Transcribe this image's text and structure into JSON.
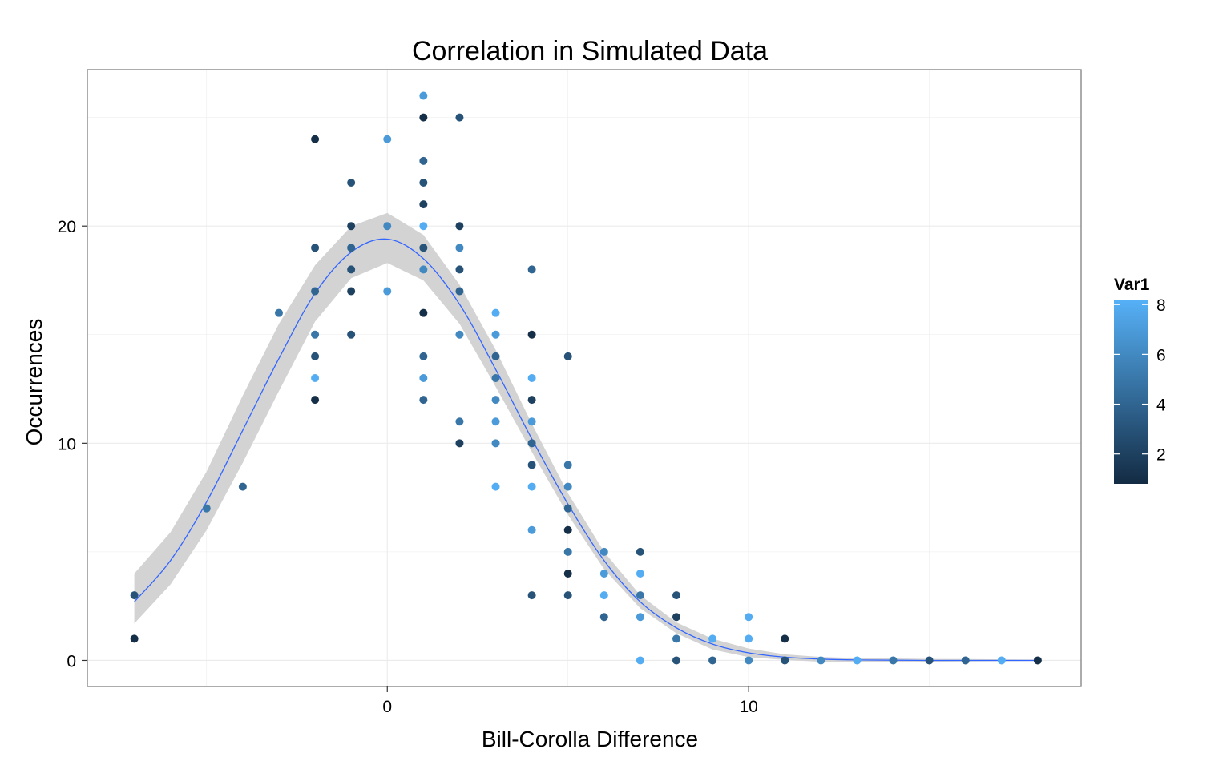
{
  "chart_data": {
    "type": "scatter",
    "title": "Correlation in Simulated Data",
    "xlabel": "Bill-Corolla Difference",
    "ylabel": "Occurrences",
    "xlim": [
      -8.3,
      19.2
    ],
    "ylim": [
      -1.2,
      27.2
    ],
    "x_ticks": [
      0,
      10
    ],
    "y_ticks": [
      0,
      10,
      20
    ],
    "x_tick_labels": [
      "0",
      "10"
    ],
    "y_tick_labels": [
      "0",
      "10",
      "20"
    ],
    "grid": true,
    "legend": {
      "title": "Var1",
      "placement": "right",
      "range": [
        0.8,
        8.2
      ],
      "ticks": [
        2,
        4,
        6,
        8
      ],
      "tick_labels": [
        "2",
        "4",
        "6",
        "8"
      ],
      "color_low": "#132b43",
      "color_high": "#56b1f7"
    },
    "colors": {
      "panel_border": "#7f7f7f",
      "grid": "#ebebeb",
      "smooth_line": "#3366ff",
      "ribbon": "#d3d3d3"
    },
    "points": [
      {
        "x": -7,
        "y": 3,
        "v": 3
      },
      {
        "x": -7,
        "y": 1,
        "v": 1
      },
      {
        "x": -5,
        "y": 7,
        "v": 5
      },
      {
        "x": -4,
        "y": 8,
        "v": 4
      },
      {
        "x": -3,
        "y": 16,
        "v": 5
      },
      {
        "x": -2,
        "y": 24,
        "v": 1
      },
      {
        "x": -2,
        "y": 19,
        "v": 3
      },
      {
        "x": -2,
        "y": 17,
        "v": 4
      },
      {
        "x": -2,
        "y": 15,
        "v": 5
      },
      {
        "x": -2,
        "y": 14,
        "v": 3
      },
      {
        "x": -2,
        "y": 13,
        "v": 8
      },
      {
        "x": -2,
        "y": 12,
        "v": 1
      },
      {
        "x": -1,
        "y": 22,
        "v": 3
      },
      {
        "x": -1,
        "y": 20,
        "v": 2
      },
      {
        "x": -1,
        "y": 19,
        "v": 4
      },
      {
        "x": -1,
        "y": 18,
        "v": 3
      },
      {
        "x": -1,
        "y": 17,
        "v": 2
      },
      {
        "x": -1,
        "y": 15,
        "v": 3
      },
      {
        "x": 0,
        "y": 24,
        "v": 7
      },
      {
        "x": 0,
        "y": 20,
        "v": 6
      },
      {
        "x": 0,
        "y": 17,
        "v": 7
      },
      {
        "x": 1,
        "y": 26,
        "v": 7
      },
      {
        "x": 1,
        "y": 25,
        "v": 1
      },
      {
        "x": 1,
        "y": 23,
        "v": 4
      },
      {
        "x": 1,
        "y": 22,
        "v": 3
      },
      {
        "x": 1,
        "y": 21,
        "v": 2
      },
      {
        "x": 1,
        "y": 20,
        "v": 8
      },
      {
        "x": 1,
        "y": 19,
        "v": 3
      },
      {
        "x": 1,
        "y": 18,
        "v": 6
      },
      {
        "x": 1,
        "y": 16,
        "v": 1
      },
      {
        "x": 1,
        "y": 14,
        "v": 4
      },
      {
        "x": 1,
        "y": 13,
        "v": 7
      },
      {
        "x": 1,
        "y": 12,
        "v": 4
      },
      {
        "x": 2,
        "y": 25,
        "v": 3
      },
      {
        "x": 2,
        "y": 20,
        "v": 2
      },
      {
        "x": 2,
        "y": 19,
        "v": 6
      },
      {
        "x": 2,
        "y": 18,
        "v": 3
      },
      {
        "x": 2,
        "y": 17,
        "v": 4
      },
      {
        "x": 2,
        "y": 15,
        "v": 6
      },
      {
        "x": 2,
        "y": 11,
        "v": 5
      },
      {
        "x": 2,
        "y": 10,
        "v": 2
      },
      {
        "x": 3,
        "y": 16,
        "v": 8
      },
      {
        "x": 3,
        "y": 15,
        "v": 7
      },
      {
        "x": 3,
        "y": 14,
        "v": 4
      },
      {
        "x": 3,
        "y": 13,
        "v": 5
      },
      {
        "x": 3,
        "y": 12,
        "v": 6
      },
      {
        "x": 3,
        "y": 11,
        "v": 7
      },
      {
        "x": 3,
        "y": 10,
        "v": 6
      },
      {
        "x": 3,
        "y": 8,
        "v": 8
      },
      {
        "x": 4,
        "y": 18,
        "v": 4
      },
      {
        "x": 4,
        "y": 15,
        "v": 1
      },
      {
        "x": 4,
        "y": 13,
        "v": 8
      },
      {
        "x": 4,
        "y": 12,
        "v": 2
      },
      {
        "x": 4,
        "y": 11,
        "v": 7
      },
      {
        "x": 4,
        "y": 10,
        "v": 4
      },
      {
        "x": 4,
        "y": 9,
        "v": 3
      },
      {
        "x": 4,
        "y": 8,
        "v": 8
      },
      {
        "x": 4,
        "y": 6,
        "v": 7
      },
      {
        "x": 4,
        "y": 3,
        "v": 3
      },
      {
        "x": 5,
        "y": 14,
        "v": 3
      },
      {
        "x": 5,
        "y": 9,
        "v": 5
      },
      {
        "x": 5,
        "y": 8,
        "v": 6
      },
      {
        "x": 5,
        "y": 7,
        "v": 4
      },
      {
        "x": 5,
        "y": 6,
        "v": 1
      },
      {
        "x": 5,
        "y": 5,
        "v": 5
      },
      {
        "x": 5,
        "y": 4,
        "v": 1
      },
      {
        "x": 5,
        "y": 3,
        "v": 3
      },
      {
        "x": 6,
        "y": 5,
        "v": 6
      },
      {
        "x": 6,
        "y": 4,
        "v": 7
      },
      {
        "x": 6,
        "y": 3,
        "v": 8
      },
      {
        "x": 6,
        "y": 2,
        "v": 4
      },
      {
        "x": 7,
        "y": 5,
        "v": 3
      },
      {
        "x": 7,
        "y": 4,
        "v": 8
      },
      {
        "x": 7,
        "y": 3,
        "v": 5
      },
      {
        "x": 7,
        "y": 2,
        "v": 7
      },
      {
        "x": 7,
        "y": 0,
        "v": 8
      },
      {
        "x": 8,
        "y": 3,
        "v": 3
      },
      {
        "x": 8,
        "y": 2,
        "v": 2
      },
      {
        "x": 8,
        "y": 1,
        "v": 5
      },
      {
        "x": 8,
        "y": 0,
        "v": 3
      },
      {
        "x": 9,
        "y": 1,
        "v": 8
      },
      {
        "x": 9,
        "y": 0,
        "v": 4
      },
      {
        "x": 10,
        "y": 2,
        "v": 8
      },
      {
        "x": 10,
        "y": 1,
        "v": 8
      },
      {
        "x": 10,
        "y": 0,
        "v": 6
      },
      {
        "x": 11,
        "y": 1,
        "v": 1
      },
      {
        "x": 11,
        "y": 0,
        "v": 3
      },
      {
        "x": 12,
        "y": 0,
        "v": 6
      },
      {
        "x": 13,
        "y": 0,
        "v": 8
      },
      {
        "x": 14,
        "y": 0,
        "v": 5
      },
      {
        "x": 15,
        "y": 0,
        "v": 3
      },
      {
        "x": 16,
        "y": 0,
        "v": 4
      },
      {
        "x": 17,
        "y": 0,
        "v": 8
      },
      {
        "x": 18,
        "y": 0,
        "v": 1
      }
    ],
    "smooth": {
      "x": [
        -7,
        -6,
        -5,
        -4,
        -3,
        -2,
        -1,
        0,
        1,
        2,
        3,
        4,
        5,
        6,
        7,
        8,
        9,
        10,
        11,
        12,
        13,
        14,
        15,
        16,
        17,
        18
      ],
      "y": [
        2.7,
        4.6,
        7.3,
        10.6,
        13.9,
        16.9,
        18.8,
        19.4,
        18.5,
        16.4,
        13.4,
        10.2,
        7.2,
        4.6,
        2.7,
        1.5,
        0.75,
        0.35,
        0.15,
        0.06,
        0.02,
        0.01,
        0,
        0,
        0,
        0
      ],
      "lower": [
        1.7,
        3.5,
        6.0,
        9.1,
        12.4,
        15.6,
        17.6,
        18.3,
        17.5,
        15.5,
        12.6,
        9.6,
        6.7,
        4.2,
        2.4,
        1.25,
        0.5,
        0.15,
        0.02,
        -0.06,
        -0.09,
        -0.08,
        -0.06,
        -0.05,
        -0.04,
        -0.03
      ],
      "upper": [
        4.0,
        5.9,
        8.7,
        12.2,
        15.5,
        18.2,
        20.0,
        20.6,
        19.6,
        17.3,
        14.3,
        10.9,
        7.7,
        5.0,
        3.0,
        1.75,
        1.0,
        0.55,
        0.28,
        0.16,
        0.11,
        0.09,
        0.07,
        0.06,
        0.05,
        0.04
      ]
    }
  }
}
